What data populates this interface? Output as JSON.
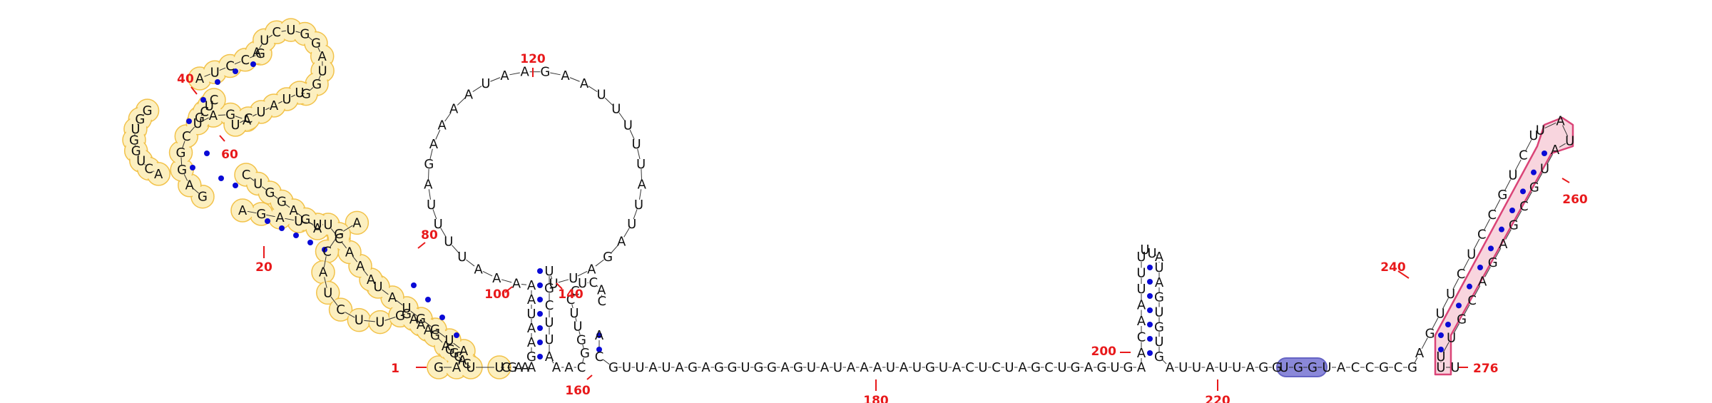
{
  "diagram": {
    "type": "rna-secondary-structure",
    "length": 276,
    "colors": {
      "base_pair_dot": "#0a0ad6",
      "numbering": "#e8191b",
      "yellow_highlight_fill": "#fcefbf",
      "yellow_highlight_stroke": "#f2c24a",
      "pink_highlight_fill": "#f8d3dd",
      "pink_highlight_stroke": "#d93a70",
      "blue_highlight_fill": "#8a88d9",
      "blue_highlight_stroke": "#6563c4"
    },
    "sequence": {
      "domain1": "GAAUGGUAUAAACUUUAGAGAGGCUAGAGCUCGGUGGUCAAUCCGAUCUGGAUGGUUAUCUCUGGAGAAGCAUCUUGGAAAGAGGCACU",
      "loop_hairpin_100": "UCGAAAGAAUAAAAAUUUUAGAAAAUAAGAAUUUUUAUUAGAUUUGCUUA",
      "stem_150": "AACGGUUCCUCAC",
      "linker_180": "GUUAUAGAGGUGGAGUAUAAAUAUGUACUCUAGCUGAGUGA",
      "hairpin_200": "ACAAUUUUAGUGUGAUUAUUAGG",
      "tail_240": "UGGUACCGCGAGUUCUCCGUCUAUGCGAGACGUUUU"
    },
    "numbering": [
      {
        "label": "1"
      },
      {
        "label": "20"
      },
      {
        "label": "40"
      },
      {
        "label": "60"
      },
      {
        "label": "80"
      },
      {
        "label": "100"
      },
      {
        "label": "120"
      },
      {
        "label": "140"
      },
      {
        "label": "160"
      },
      {
        "label": "180"
      },
      {
        "label": "200"
      },
      {
        "label": "220"
      },
      {
        "label": "240"
      },
      {
        "label": "260"
      },
      {
        "label": "276"
      }
    ]
  }
}
